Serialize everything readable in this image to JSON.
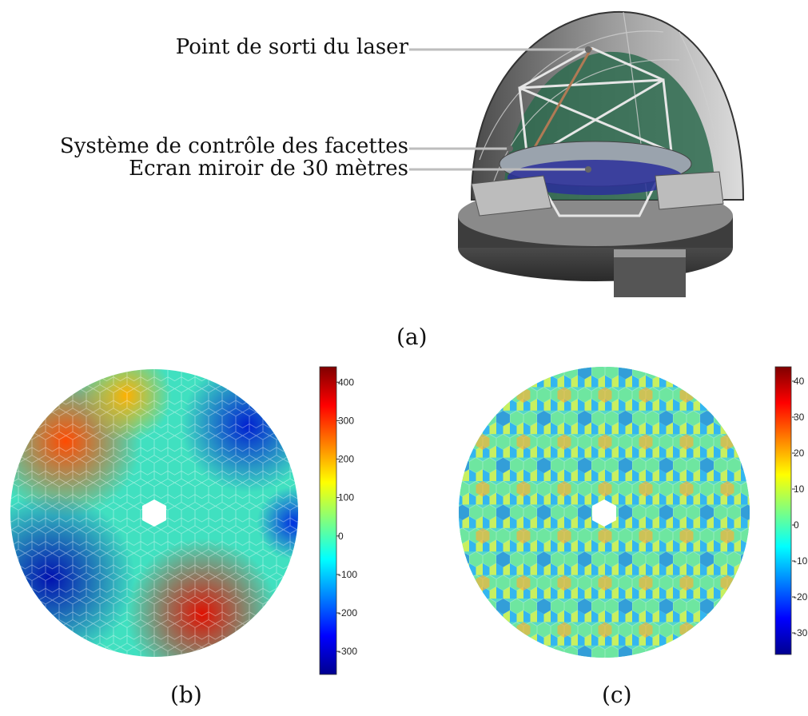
{
  "figure": {
    "panel_a": {
      "label": "(a)",
      "callouts": [
        "Point de sorti du laser",
        "Système de contrôle des facettes",
        "Ecran miroir de 30 mètres"
      ]
    },
    "panel_b": {
      "label": "(b)",
      "colorbar_ticks": [
        "400",
        "300",
        "200",
        "100",
        "0",
        "-100",
        "-200",
        "-300"
      ],
      "colorbar_range": [
        -360,
        440
      ]
    },
    "panel_c": {
      "label": "(c)",
      "colorbar_ticks": [
        "40",
        "30",
        "20",
        "10",
        "0",
        "-10",
        "-20",
        "-30"
      ],
      "colorbar_range": [
        -36,
        44
      ]
    }
  },
  "colors": {
    "jet_low": "#00008f",
    "jet_mid": "#7fff7f",
    "jet_high": "#7f0000",
    "callout_line": "#bdbdbd"
  }
}
